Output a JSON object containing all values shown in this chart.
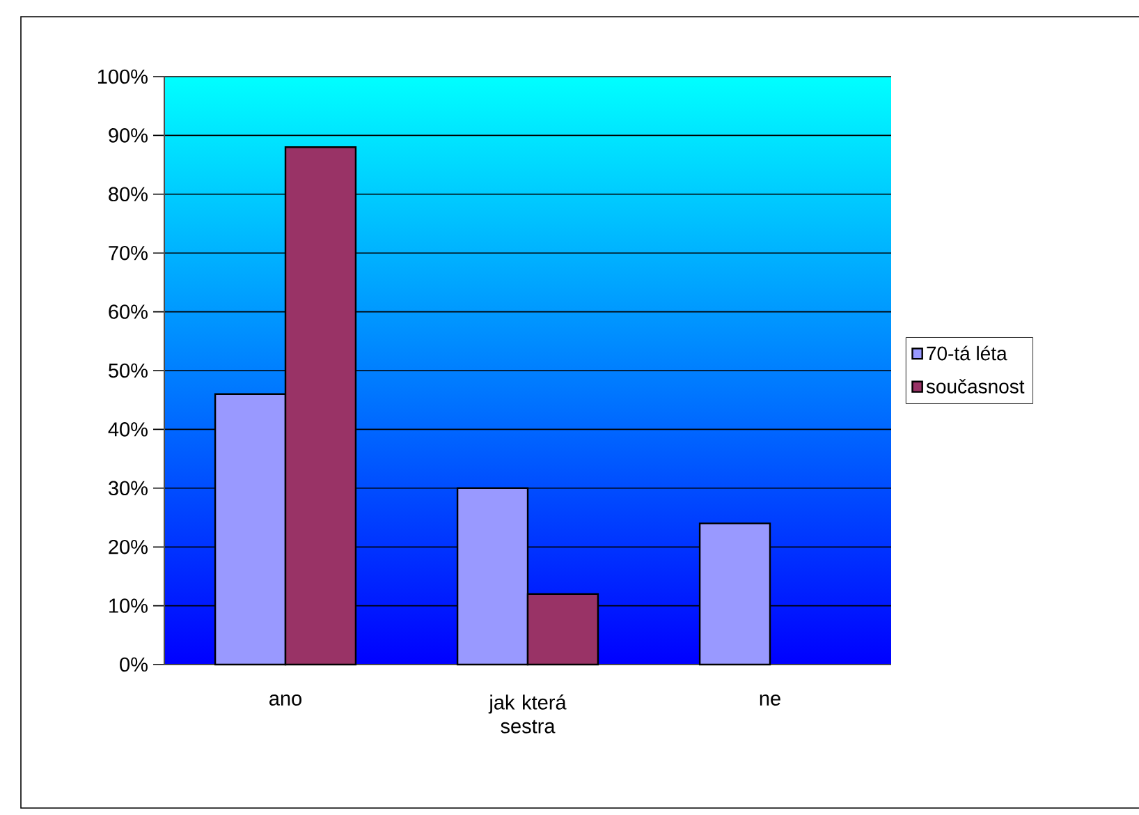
{
  "chart_data": {
    "type": "bar",
    "categories": [
      "ano",
      "jak která sestra",
      "ne"
    ],
    "series": [
      {
        "name": "70-tá léta",
        "color": "#9999ff",
        "values": [
          46,
          30,
          24
        ]
      },
      {
        "name": "současnost",
        "color": "#993366",
        "values": [
          88,
          12,
          null
        ]
      }
    ],
    "ylim": [
      0,
      100
    ],
    "yticks": [
      {
        "value": 0,
        "label": "0%"
      },
      {
        "value": 10,
        "label": "10%"
      },
      {
        "value": 20,
        "label": "20%"
      },
      {
        "value": 30,
        "label": "30%"
      },
      {
        "value": 40,
        "label": "40%"
      },
      {
        "value": 50,
        "label": "50%"
      },
      {
        "value": 60,
        "label": "60%"
      },
      {
        "value": 70,
        "label": "70%"
      },
      {
        "value": 80,
        "label": "80%"
      },
      {
        "value": 90,
        "label": "90%"
      },
      {
        "value": 100,
        "label": "100%"
      }
    ],
    "grid": "y",
    "legend": "right"
  }
}
